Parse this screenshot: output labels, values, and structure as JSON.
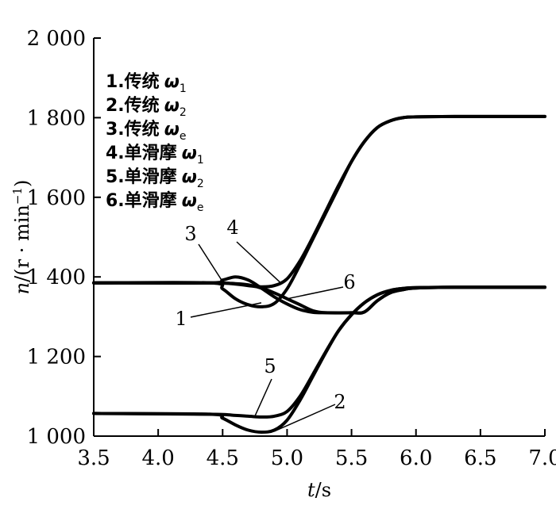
{
  "chart_data": {
    "type": "line",
    "xlabel": {
      "var": "t",
      "unit": "/s"
    },
    "ylabel": {
      "var": "n",
      "unit": "/(r · min",
      "sup": "−1",
      "close": ")"
    },
    "xlim": [
      3.5,
      7.0
    ],
    "ylim": [
      1000,
      2000
    ],
    "x_ticks": [
      "3.5",
      "4.0",
      "4.5",
      "5.0",
      "5.5",
      "6.0",
      "6.5",
      "7.0"
    ],
    "y_ticks": [
      "1 000",
      "1 200",
      "1 400",
      "1 600",
      "1 800",
      "2 000"
    ],
    "grid": false,
    "legend_position": "top-left",
    "legend": [
      {
        "id": "1",
        "prefix": "1.",
        "text": "传统",
        "symbol": "ω",
        "sub": "1"
      },
      {
        "id": "2",
        "prefix": "2.",
        "text": "传统",
        "symbol": "ω",
        "sub": "2"
      },
      {
        "id": "3",
        "prefix": "3.",
        "text": "传统",
        "symbol": "ω",
        "sub": "e"
      },
      {
        "id": "4",
        "prefix": "4.",
        "text": "单滑摩",
        "symbol": "ω",
        "sub": "1"
      },
      {
        "id": "5",
        "prefix": "5.",
        "text": "单滑摩",
        "symbol": "ω",
        "sub": "2"
      },
      {
        "id": "6",
        "prefix": "6.",
        "text": "单滑摩",
        "symbol": "ω",
        "sub": "e"
      }
    ],
    "annotations": [
      {
        "label": "1",
        "series": "1",
        "point": [
          4.8,
          1335
        ]
      },
      {
        "label": "2",
        "series": "2",
        "point": [
          4.9,
          1012
        ]
      },
      {
        "label": "3",
        "series": "3",
        "point": [
          4.5,
          1388
        ]
      },
      {
        "label": "4",
        "series": "4",
        "point": [
          4.95,
          1385
        ]
      },
      {
        "label": "5",
        "series": "5",
        "point": [
          4.75,
          1050
        ]
      },
      {
        "label": "6",
        "series": "6",
        "point": [
          5.0,
          1345
        ]
      }
    ],
    "series": [
      {
        "name": "1",
        "x": [
          3.5,
          4.4,
          4.5,
          4.6,
          4.7,
          4.8,
          4.9,
          5.0,
          5.1,
          5.2,
          5.3,
          5.4,
          5.5,
          5.6,
          5.7,
          5.8,
          5.9,
          6.0,
          6.3,
          7.0
        ],
        "y": [
          1385,
          1385,
          1370,
          1345,
          1330,
          1325,
          1333,
          1370,
          1430,
          1495,
          1560,
          1625,
          1690,
          1740,
          1775,
          1792,
          1800,
          1802,
          1803,
          1803
        ]
      },
      {
        "name": "2",
        "x": [
          3.5,
          4.4,
          4.5,
          4.6,
          4.7,
          4.8,
          4.9,
          5.0,
          5.1,
          5.2,
          5.3,
          5.4,
          5.5,
          5.6,
          5.7,
          5.8,
          5.9,
          6.0,
          6.3,
          7.0
        ],
        "y": [
          1057,
          1055,
          1045,
          1028,
          1015,
          1010,
          1015,
          1040,
          1090,
          1150,
          1210,
          1265,
          1305,
          1335,
          1355,
          1366,
          1371,
          1373,
          1374,
          1374
        ]
      },
      {
        "name": "3",
        "x": [
          3.5,
          4.4,
          4.5,
          4.6,
          4.7,
          4.8,
          4.9,
          5.0,
          5.1,
          5.2,
          5.3,
          5.5,
          5.6,
          5.7,
          5.8,
          5.9,
          6.0,
          6.3,
          7.0
        ],
        "y": [
          1385,
          1385,
          1392,
          1400,
          1392,
          1372,
          1350,
          1332,
          1318,
          1311,
          1310,
          1310,
          1312,
          1340,
          1360,
          1368,
          1372,
          1374,
          1374
        ]
      },
      {
        "name": "4",
        "x": [
          3.5,
          4.4,
          4.6,
          4.7,
          4.8,
          4.9,
          5.0,
          5.1,
          5.2,
          5.3,
          5.4,
          5.5,
          5.6,
          5.7,
          5.8,
          5.9,
          6.0,
          6.3,
          7.0
        ],
        "y": [
          1385,
          1385,
          1382,
          1378,
          1375,
          1378,
          1395,
          1440,
          1500,
          1565,
          1630,
          1690,
          1740,
          1775,
          1792,
          1800,
          1802,
          1803,
          1803
        ]
      },
      {
        "name": "5",
        "x": [
          3.5,
          4.4,
          4.6,
          4.7,
          4.8,
          4.9,
          5.0,
          5.1,
          5.2,
          5.3,
          5.4,
          5.5,
          5.6,
          5.7,
          5.8,
          5.9,
          6.0,
          6.3,
          7.0
        ],
        "y": [
          1057,
          1055,
          1052,
          1050,
          1048,
          1050,
          1062,
          1100,
          1155,
          1212,
          1265,
          1305,
          1335,
          1355,
          1366,
          1371,
          1373,
          1374,
          1374
        ]
      },
      {
        "name": "6",
        "x": [
          3.5,
          4.4,
          4.6,
          4.7,
          4.8,
          4.9,
          5.0,
          5.1,
          5.2,
          5.3,
          5.5,
          5.6,
          5.7,
          5.8,
          5.9,
          6.0,
          6.3,
          7.0
        ],
        "y": [
          1385,
          1385,
          1383,
          1380,
          1372,
          1360,
          1345,
          1330,
          1315,
          1310,
          1310,
          1312,
          1340,
          1360,
          1368,
          1372,
          1374,
          1374
        ]
      }
    ]
  }
}
